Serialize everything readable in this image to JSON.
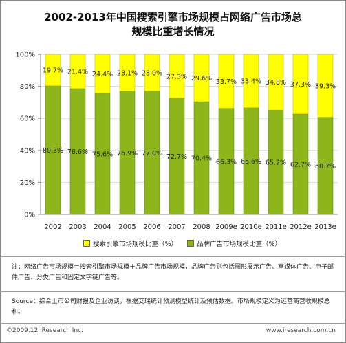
{
  "chart_data": {
    "type": "bar",
    "stacked": true,
    "title_line1": "2002-2013年中国搜索引擎市场规模占网络广告市场总",
    "title_line2": "规模比重增长情况",
    "categories": [
      "2002",
      "2003",
      "2004",
      "2005",
      "2006",
      "2007",
      "2008",
      "2009e",
      "2010e",
      "2011e",
      "2012e",
      "2013e"
    ],
    "series": [
      {
        "name": "品牌广告市场规模比重（%）",
        "color": "#8cb61a",
        "values": [
          80.3,
          78.6,
          75.6,
          76.9,
          77.0,
          72.7,
          70.4,
          66.3,
          66.6,
          65.2,
          62.7,
          60.7
        ]
      },
      {
        "name": "搜索引擎市场规模比重（%）",
        "color": "#ffff00",
        "values": [
          19.7,
          21.4,
          24.4,
          23.1,
          23.0,
          27.3,
          29.6,
          33.7,
          33.4,
          34.8,
          37.3,
          39.3
        ]
      }
    ],
    "value_labels": {
      "brand": [
        "80.3%",
        "78.6%",
        "75.6%",
        "76.9%",
        "77.0%",
        "72.7%",
        "70.4%",
        "66.3%",
        "66.6%",
        "65.2%",
        "62.7%",
        "60.7%"
      ],
      "search": [
        "19.7%",
        "21.4%",
        "24.4%",
        "23.1%",
        "23.0%",
        "27.3%",
        "29.6%",
        "33.7%",
        "33.4%",
        "34.8%",
        "37.3%",
        "39.3%"
      ]
    },
    "yticks": [
      "0%",
      "20%",
      "40%",
      "60%",
      "80%",
      "100%"
    ],
    "ylim": [
      0,
      100
    ],
    "legend_position": "bottom"
  },
  "footer": {
    "note": "注：网络广告市场规模＝搜索引擎市场规模＋品牌广告市场规模，品牌广告则包括图形展示广告、富媒体广告、电子邮件广告、分类广告和固定文字链广告等。",
    "source": "Source：综合上市公司财报及企业访谈，根据艾瑞统计预测模型统计及预估数据。市场规模定义为运营商营收规模总和。",
    "copyright": "©2009.12 iResearch Inc.",
    "website": "www.iresearch.com.cn"
  }
}
